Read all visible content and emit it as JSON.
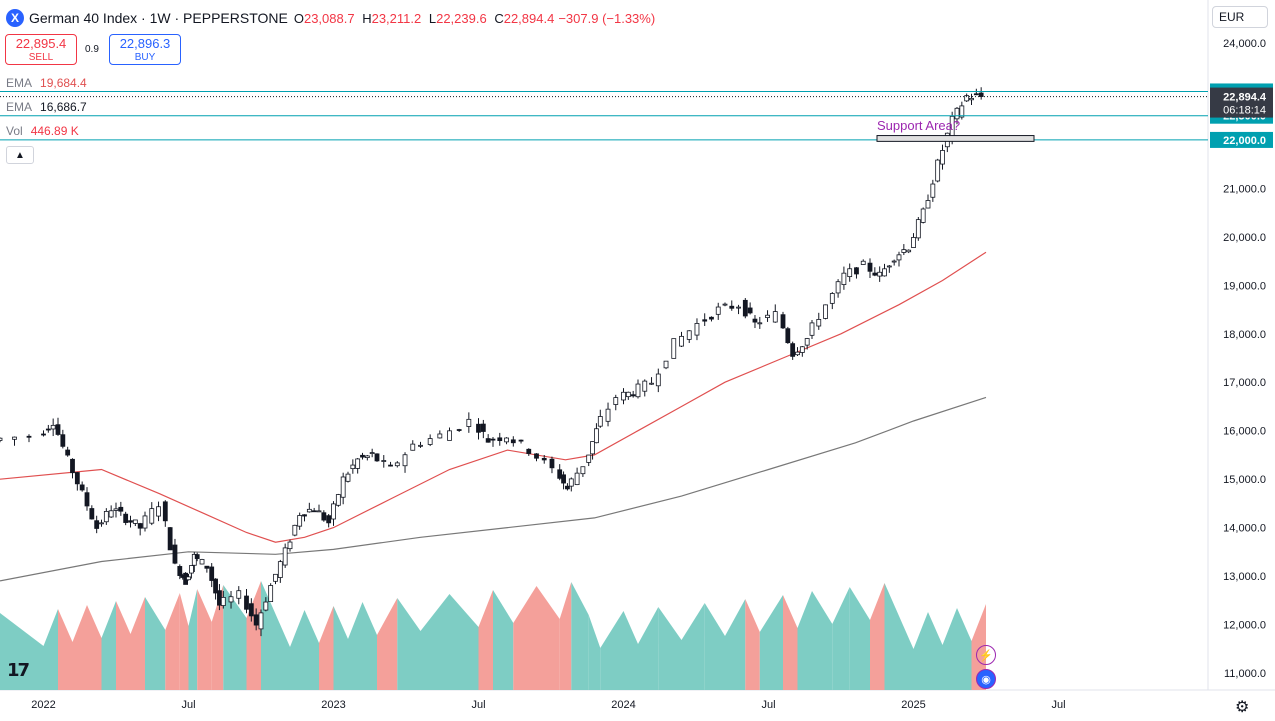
{
  "header": {
    "symbol_icon": "X",
    "title": "German 40 Index · 1W · PEPPERSTONE",
    "ohlc": [
      {
        "k": "O",
        "v": "23,088.7"
      },
      {
        "k": "H",
        "v": "23,211.2"
      },
      {
        "k": "L",
        "v": "22,239.6"
      },
      {
        "k": "C",
        "v": "22,894.4"
      }
    ],
    "change": "−307.9 (−1.33%)"
  },
  "trade": {
    "sell_price": "22,895.4",
    "sell_label": "SELL",
    "spread": "0.9",
    "buy_price": "22,896.3",
    "buy_label": "BUY"
  },
  "indicators": {
    "ema1_label": "EMA",
    "ema1_value": "19,684.4",
    "ema2_label": "EMA",
    "ema2_value": "16,686.7",
    "vol_label": "Vol",
    "vol_value": "446.89 K"
  },
  "currency": "EUR",
  "logo": "17",
  "annotation": "Support Area?",
  "colors": {
    "up": "#131722",
    "down": "#131722",
    "ema_fast": "#e05050",
    "ema_slow": "#787878",
    "hline": "#00a0b0",
    "vol_up": "#7ecdc4",
    "vol_down": "#f4a09a",
    "label_bg": "#00a0b0",
    "price_label_bg": "#363a45"
  },
  "chart_data": {
    "type": "candlestick",
    "x_ticks": [
      "2022",
      "Jul",
      "2023",
      "Jul",
      "2024",
      "Jul",
      "2025",
      "Jul"
    ],
    "y_ticks": [
      "24,000.0",
      "23,000.0",
      "22,000.0",
      "21,000.0",
      "20,000.0",
      "19,000.0",
      "18,000.0",
      "17,000.0",
      "16,000.0",
      "15,000.0",
      "14,000.0",
      "13,000.0",
      "12,000.0",
      "11,000.0"
    ],
    "ylim": [
      10600,
      24400
    ],
    "horizontal_lines": [
      {
        "value": 23000,
        "label": "23,000.0"
      },
      {
        "value": 22500,
        "label": "22,500.0"
      },
      {
        "value": 22000,
        "label": "22,000.0"
      }
    ],
    "last_price": {
      "value": 22894.4,
      "label": "22,894.4",
      "countdown": "06:18:14"
    },
    "support_zone": {
      "from": 21970,
      "to": 22090,
      "label": "Support Area?"
    },
    "weekly_close_path": [
      [
        2021.85,
        15800
      ],
      [
        2022.0,
        15900
      ],
      [
        2022.05,
        16200
      ],
      [
        2022.1,
        15400
      ],
      [
        2022.15,
        14700
      ],
      [
        2022.2,
        14000
      ],
      [
        2022.25,
        14400
      ],
      [
        2022.3,
        14200
      ],
      [
        2022.35,
        14000
      ],
      [
        2022.42,
        14500
      ],
      [
        2022.47,
        13200
      ],
      [
        2022.5,
        12900
      ],
      [
        2022.53,
        13400
      ],
      [
        2022.58,
        13200
      ],
      [
        2022.62,
        12400
      ],
      [
        2022.7,
        12600
      ],
      [
        2022.75,
        12000
      ],
      [
        2022.8,
        12800
      ],
      [
        2022.85,
        13500
      ],
      [
        2022.9,
        14300
      ],
      [
        2022.95,
        14400
      ],
      [
        2023.0,
        14100
      ],
      [
        2023.05,
        15000
      ],
      [
        2023.1,
        15400
      ],
      [
        2023.15,
        15500
      ],
      [
        2023.22,
        15200
      ],
      [
        2023.3,
        15700
      ],
      [
        2023.4,
        15900
      ],
      [
        2023.5,
        16200
      ],
      [
        2023.55,
        15800
      ],
      [
        2023.62,
        15900
      ],
      [
        2023.7,
        15600
      ],
      [
        2023.78,
        15200
      ],
      [
        2023.82,
        14800
      ],
      [
        2023.88,
        15300
      ],
      [
        2023.92,
        16000
      ],
      [
        2024.0,
        16700
      ],
      [
        2024.05,
        16800
      ],
      [
        2024.12,
        17000
      ],
      [
        2024.2,
        17800
      ],
      [
        2024.28,
        18200
      ],
      [
        2024.35,
        18500
      ],
      [
        2024.42,
        18600
      ],
      [
        2024.47,
        18200
      ],
      [
        2024.55,
        18400
      ],
      [
        2024.6,
        17600
      ],
      [
        2024.65,
        17900
      ],
      [
        2024.72,
        18600
      ],
      [
        2024.78,
        19200
      ],
      [
        2024.85,
        19400
      ],
      [
        2024.9,
        19200
      ],
      [
        2024.95,
        19600
      ],
      [
        2025.0,
        19800
      ],
      [
        2025.05,
        20500
      ],
      [
        2025.1,
        21500
      ],
      [
        2025.15,
        22400
      ],
      [
        2025.2,
        22900
      ],
      [
        2025.25,
        22894
      ]
    ],
    "ema_fast_path": [
      [
        2021.85,
        15000
      ],
      [
        2022.2,
        15200
      ],
      [
        2022.4,
        14700
      ],
      [
        2022.55,
        14300
      ],
      [
        2022.7,
        13900
      ],
      [
        2022.8,
        13700
      ],
      [
        2022.9,
        13800
      ],
      [
        2023.0,
        14000
      ],
      [
        2023.2,
        14600
      ],
      [
        2023.4,
        15200
      ],
      [
        2023.6,
        15600
      ],
      [
        2023.8,
        15400
      ],
      [
        2023.9,
        15500
      ],
      [
        2024.05,
        16000
      ],
      [
        2024.2,
        16500
      ],
      [
        2024.35,
        17000
      ],
      [
        2024.55,
        17500
      ],
      [
        2024.75,
        18000
      ],
      [
        2024.95,
        18600
      ],
      [
        2025.1,
        19100
      ],
      [
        2025.25,
        19684
      ]
    ],
    "ema_slow_path": [
      [
        2021.85,
        12900
      ],
      [
        2022.2,
        13300
      ],
      [
        2022.5,
        13500
      ],
      [
        2022.8,
        13450
      ],
      [
        2023.0,
        13550
      ],
      [
        2023.3,
        13800
      ],
      [
        2023.6,
        14000
      ],
      [
        2023.9,
        14200
      ],
      [
        2024.2,
        14650
      ],
      [
        2024.5,
        15200
      ],
      [
        2024.8,
        15750
      ],
      [
        2025.0,
        16200
      ],
      [
        2025.25,
        16687
      ]
    ]
  }
}
